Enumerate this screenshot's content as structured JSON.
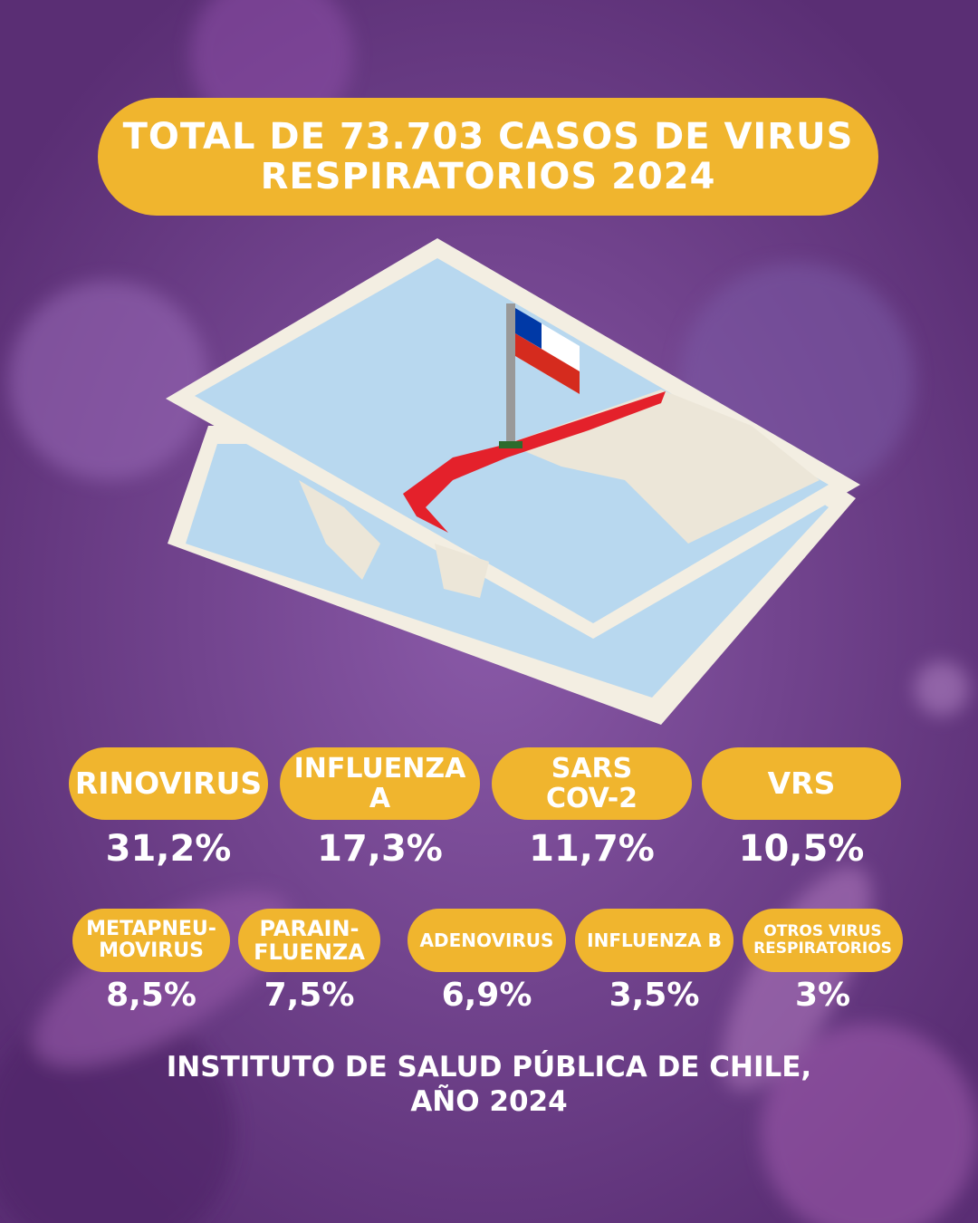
{
  "title": "TOTAL DE 73.703 CASOS DE VIRUS\nRESPIRATORIOS 2024",
  "items": [
    {
      "label": "RINOVIRUS",
      "value": "31,2%"
    },
    {
      "label": "INFLUENZA\nA",
      "value": "17,3%"
    },
    {
      "label": "SARS\nCOV-2",
      "value": "11,7%"
    },
    {
      "label": "VRS",
      "value": "10,5%"
    },
    {
      "label": "METAPNEU-\nMOVIRUS",
      "value": "8,5%"
    },
    {
      "label": "PARAIN-\nFLUENZA",
      "value": "7,5%"
    },
    {
      "label": "ADENOVIRUS",
      "value": "6,9%"
    },
    {
      "label": "INFLUENZA B",
      "value": "3,5%"
    },
    {
      "label": "OTROS VIRUS\nRESPIRATORIOS",
      "value": "3%"
    }
  ],
  "source": "INSTITUTO DE SALUD PÚBLICA DE CHILE,\nAÑO 2024"
}
